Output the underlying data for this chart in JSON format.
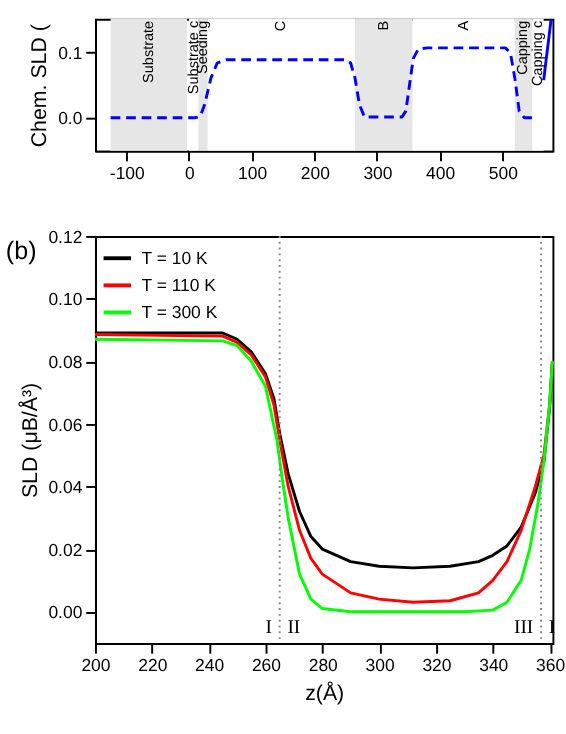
{
  "chart_data": [
    {
      "type": "line",
      "ylabel": "Chem. SLD (",
      "xlim": [
        -150,
        580
      ],
      "ylim": [
        -0.05,
        0.15
      ],
      "xticks": [
        -100,
        0,
        100,
        200,
        300,
        400,
        500
      ],
      "yticks": [
        {
          "value": 0,
          "label": "0.0"
        },
        0.1
      ],
      "grid": false,
      "series": [
        {
          "color": "#0000ff",
          "line_style": "dashed",
          "x": [
            -125,
            10,
            18,
            25,
            35,
            45,
            60,
            250,
            258,
            265,
            272,
            280,
            340,
            346,
            352,
            358,
            366,
            380,
            505,
            513,
            520,
            527,
            535,
            548
          ],
          "values": [
            0,
            0,
            0.002,
            0.02,
            0.06,
            0.083,
            0.088,
            0.088,
            0.083,
            0.06,
            0.02,
            0.001,
            0.001,
            0.01,
            0.05,
            0.09,
            0.104,
            0.106,
            0.106,
            0.098,
            0.06,
            0.01,
            0,
            0
          ]
        },
        {
          "color": "#0000ff",
          "line_style": "solid",
          "x": [
            566,
            578
          ],
          "values": [
            0.057,
            0.15
          ]
        }
      ],
      "bands": [
        {
          "axis": "x",
          "from": -125,
          "to": -3,
          "label": "Substrate",
          "color": "#e6e6e6"
        },
        {
          "axis": "x",
          "from": 0,
          "to": 15,
          "label": "Substrate c",
          "color": "#ffffff"
        },
        {
          "axis": "x",
          "from": 15,
          "to": 30,
          "label": "Seeding",
          "color": "#e6e6e6"
        },
        {
          "axis": "x",
          "from": 30,
          "to": 265,
          "label": "C",
          "color": "#ffffff"
        },
        {
          "axis": "x",
          "from": 265,
          "to": 357,
          "label": "B",
          "color": "#e6e6e6"
        },
        {
          "axis": "x",
          "from": 357,
          "to": 520,
          "label": "A",
          "color": "#ffffff"
        },
        {
          "axis": "x",
          "from": 520,
          "to": 548,
          "label": "Capping",
          "color": "#e6e6e6"
        },
        {
          "axis": "x",
          "from": 548,
          "to": 566,
          "label": "Capping c",
          "color": "#ffffff"
        }
      ],
      "legend": false
    },
    {
      "type": "line",
      "xlabel": "z(Å)",
      "ylabel": "SLD (μB/Å³)",
      "xlim": [
        200,
        361
      ],
      "ylim": [
        -0.01,
        0.12
      ],
      "xticks": [
        200,
        220,
        240,
        260,
        280,
        300,
        320,
        340,
        360
      ],
      "yticks": [
        {
          "value": 0,
          "label": "0.00"
        },
        {
          "value": 0.02,
          "label": "0.02"
        },
        {
          "value": 0.04,
          "label": "0.04"
        },
        {
          "value": 0.06,
          "label": "0.06"
        },
        {
          "value": 0.08,
          "label": "0.08"
        },
        {
          "value": 0.1,
          "label": "0.10"
        },
        {
          "value": 0.12,
          "label": "0.12"
        }
      ],
      "grid": false,
      "legend": "top left",
      "series": [
        {
          "name": "T =   10 K",
          "color": "#000000",
          "x": [
            200,
            245,
            250,
            255,
            260,
            263,
            265,
            268,
            272,
            276,
            280,
            290,
            300,
            312,
            325,
            335,
            340,
            345,
            350,
            355,
            358,
            360,
            361
          ],
          "values": [
            0.089,
            0.089,
            0.087,
            0.083,
            0.076,
            0.068,
            0.057,
            0.044,
            0.032,
            0.024,
            0.02,
            0.016,
            0.0145,
            0.014,
            0.0145,
            0.016,
            0.018,
            0.021,
            0.027,
            0.038,
            0.048,
            0.065,
            0.08
          ]
        },
        {
          "name": "T = 110 K",
          "color": "#ff0000",
          "x": [
            200,
            245,
            250,
            255,
            260,
            263,
            265,
            268,
            272,
            276,
            280,
            290,
            300,
            312,
            325,
            335,
            340,
            345,
            350,
            355,
            358,
            360,
            361
          ],
          "values": [
            0.0885,
            0.088,
            0.086,
            0.082,
            0.075,
            0.066,
            0.055,
            0.04,
            0.026,
            0.017,
            0.012,
            0.006,
            0.004,
            0.003,
            0.0035,
            0.006,
            0.01,
            0.016,
            0.026,
            0.04,
            0.05,
            0.066,
            0.08
          ]
        },
        {
          "name": "T = 300 K",
          "color": "#00ff00",
          "x": [
            200,
            245,
            250,
            255,
            260,
            264,
            266,
            268,
            272,
            276,
            280,
            290,
            330,
            340,
            345,
            350,
            353,
            356,
            358,
            360,
            361
          ],
          "values": [
            0.087,
            0.0865,
            0.085,
            0.08,
            0.072,
            0.055,
            0.042,
            0.03,
            0.012,
            0.004,
            0.001,
            0,
            0,
            0.0005,
            0.003,
            0.01,
            0.02,
            0.035,
            0.048,
            0.066,
            0.08
          ]
        }
      ],
      "ref_lines": [
        {
          "axis": "x",
          "value": 265,
          "color": "#888888",
          "line_style": "dotted"
        },
        {
          "axis": "x",
          "value": 357,
          "color": "#888888",
          "line_style": "dotted"
        }
      ],
      "annotations": [
        "(b)",
        "I",
        "II",
        "III",
        "I"
      ]
    }
  ]
}
